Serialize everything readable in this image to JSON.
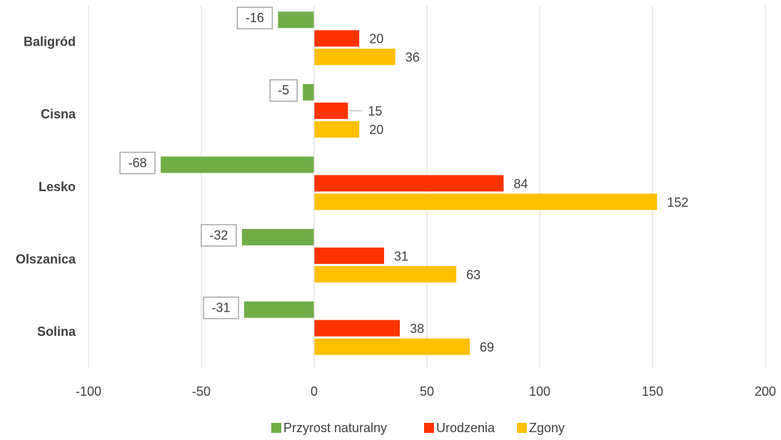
{
  "chart_data": {
    "type": "bar",
    "orientation": "horizontal",
    "categories": [
      "Baligród",
      "Cisna",
      "Lesko",
      "Olszanica",
      "Solina"
    ],
    "series": [
      {
        "name": "Przyrost naturalny",
        "color": "#70AD47",
        "values": [
          -16,
          -5,
          -68,
          -32,
          -31
        ],
        "labels": [
          "-16",
          "-5",
          "-68",
          "-32",
          "-31"
        ]
      },
      {
        "name": "Urodzenia",
        "color": "#FF3300",
        "values": [
          20,
          15,
          84,
          31,
          38
        ],
        "labels": [
          "20",
          "15",
          "84",
          "31",
          "38"
        ]
      },
      {
        "name": "Zgony",
        "color": "#FFC000",
        "values": [
          36,
          20,
          152,
          63,
          69
        ],
        "labels": [
          "36",
          "20",
          "152",
          "63",
          "69"
        ]
      }
    ],
    "xlim": [
      -100,
      200
    ],
    "xticks": [
      -100,
      -50,
      0,
      50,
      100,
      150,
      200
    ],
    "xtick_labels": [
      "-100",
      "-50",
      "0",
      "50",
      "100",
      "150",
      "200"
    ],
    "grid": "vertical",
    "legend_position": "bottom",
    "title": "",
    "xlabel": "",
    "ylabel": ""
  }
}
